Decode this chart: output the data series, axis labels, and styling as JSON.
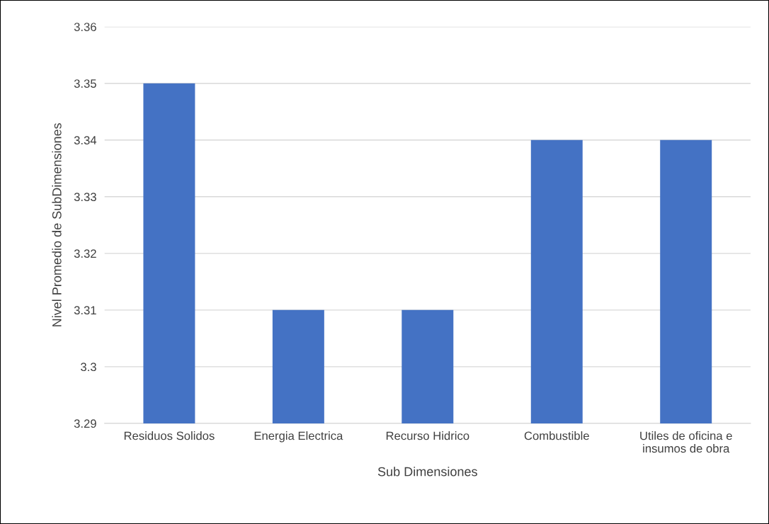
{
  "chart_data": {
    "type": "bar",
    "xlabel": "Sub Dimensiones",
    "ylabel": "Nivel Promedio de SubDimensiones",
    "categories": [
      "Residuos Solidos",
      "Energia Electrica",
      "Recurso Hidrico",
      "Combustible",
      "Utiles de oficina e\ninsumos de obra"
    ],
    "values": [
      3.35,
      3.31,
      3.31,
      3.34,
      3.34
    ],
    "color": "#4472c4",
    "ylim": [
      3.29,
      3.36
    ],
    "yticks": [
      3.29,
      3.3,
      3.31,
      3.32,
      3.33,
      3.34,
      3.35,
      3.36
    ],
    "grid": "y",
    "legend": false
  }
}
